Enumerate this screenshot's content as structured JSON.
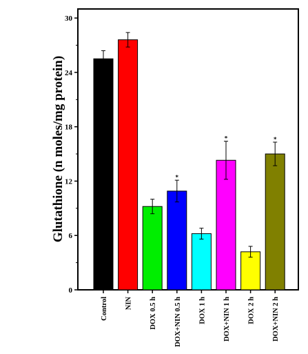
{
  "chart_data": {
    "type": "bar",
    "ylabel": "Glutathione (n moles/mg protein)",
    "xlabel": "",
    "ylim": [
      0,
      31
    ],
    "yticks": [
      0,
      6,
      12,
      18,
      24,
      30
    ],
    "categories": [
      "Control",
      "NIN",
      "DOX 0.5 h",
      "DOX+NIN 0.5 h",
      "DOX 1 h",
      "DOX+NIN 1 h",
      "DOX 2 h",
      "DOX+NIN 2 h"
    ],
    "values": [
      25.5,
      27.6,
      9.2,
      10.9,
      6.2,
      14.3,
      4.2,
      15.0
    ],
    "errors": [
      0.9,
      0.8,
      0.8,
      1.2,
      0.6,
      2.1,
      0.6,
      1.3
    ],
    "colors": [
      "#000000",
      "#ff0000",
      "#00ee00",
      "#0000ff",
      "#00ffff",
      "#ff00ff",
      "#ffff00",
      "#808000"
    ],
    "significance_marks": [
      false,
      false,
      false,
      true,
      false,
      true,
      false,
      true
    ],
    "significance_symbol": "*",
    "grid": false,
    "legend": "none"
  }
}
